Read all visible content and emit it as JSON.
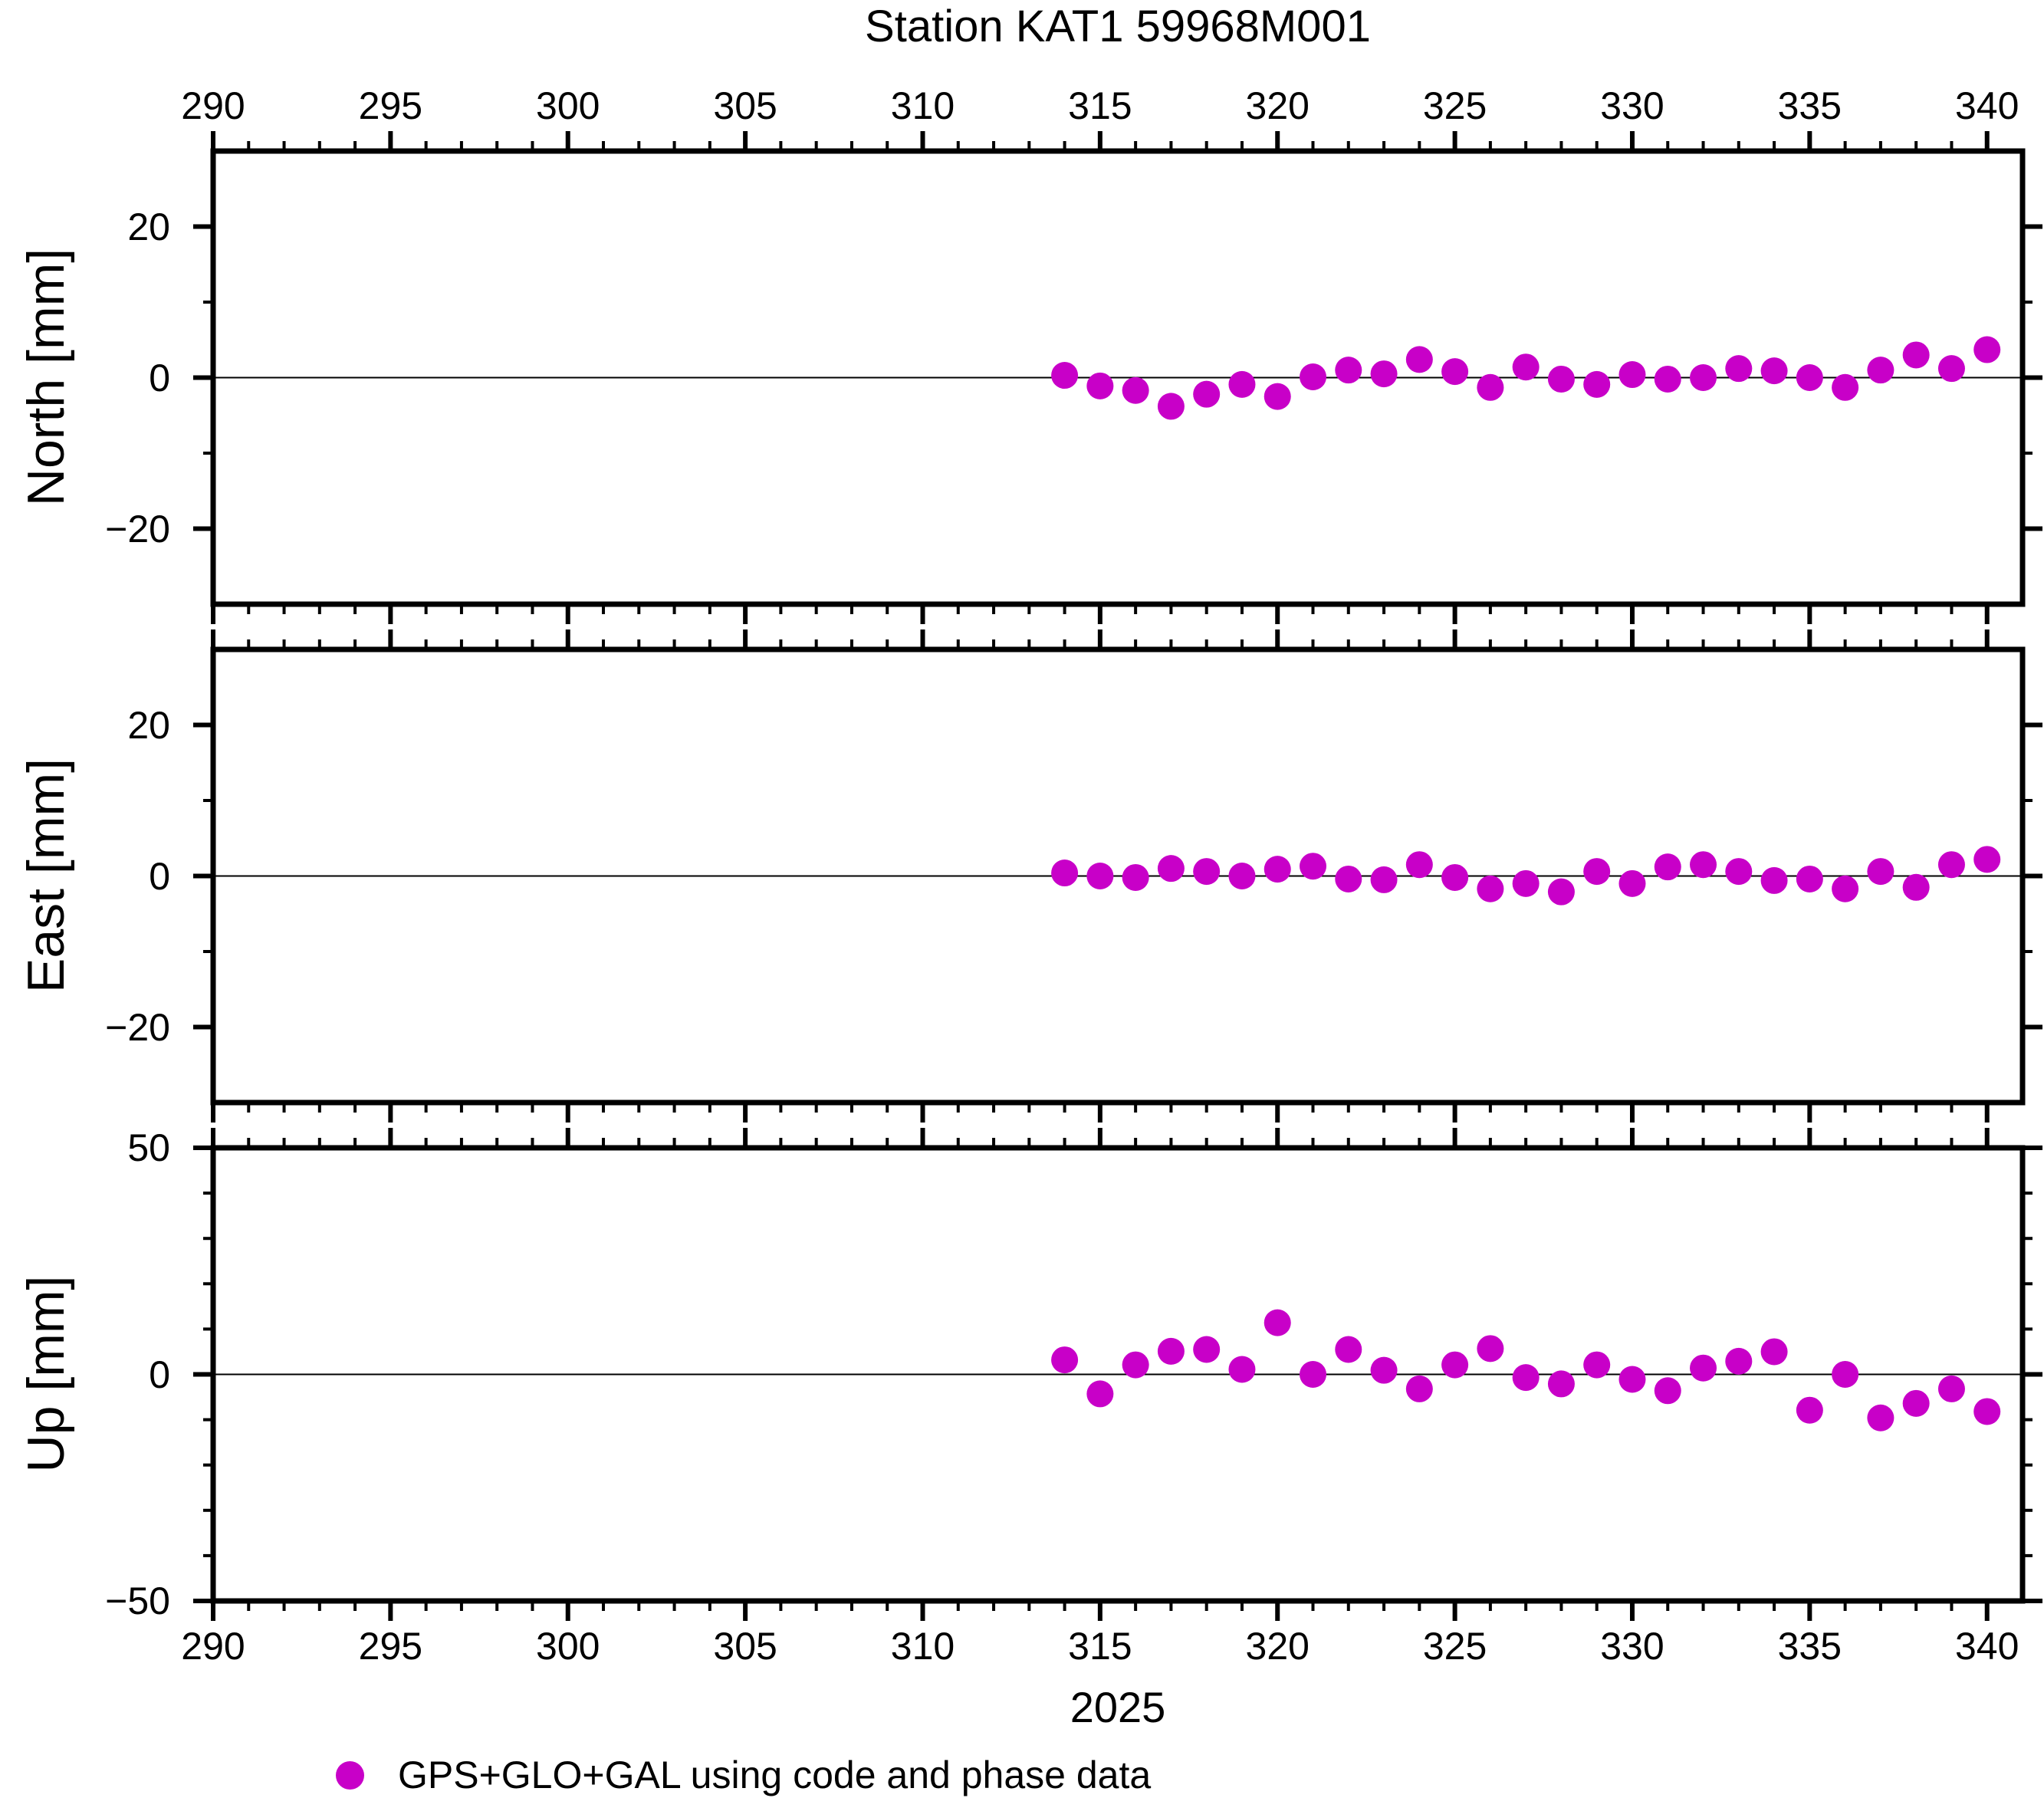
{
  "title": "Station KAT1 59968M001",
  "year_label": "2025",
  "legend": {
    "marker_color": "#C800C8",
    "label": "GPS+GLO+GAL using code and phase data"
  },
  "frame_color": "#000000",
  "axes": {
    "x": {
      "min": 290,
      "max": 341,
      "major_step": 5,
      "minor_step": 1,
      "labels": [
        {
          "v": 290,
          "label": "290"
        },
        {
          "v": 295,
          "label": "295"
        },
        {
          "v": 300,
          "label": "300"
        },
        {
          "v": 305,
          "label": "305"
        },
        {
          "v": 310,
          "label": "310"
        },
        {
          "v": 315,
          "label": "315"
        },
        {
          "v": 320,
          "label": "320"
        },
        {
          "v": 325,
          "label": "325"
        },
        {
          "v": 330,
          "label": "330"
        },
        {
          "v": 335,
          "label": "335"
        },
        {
          "v": 340,
          "label": "340"
        }
      ]
    }
  },
  "chart_data": [
    {
      "type": "scatter",
      "name": "North [mm]",
      "marker_color": "#C800C8",
      "ylim": [
        -30,
        30
      ],
      "grid_y": 0,
      "yticks": [
        {
          "v": 20,
          "label": "20"
        },
        {
          "v": 0,
          "label": "0"
        },
        {
          "v": -20,
          "label": "−20"
        }
      ],
      "y_minor": [
        -10,
        10
      ],
      "x": [
        314,
        315,
        316,
        317,
        318,
        319,
        320,
        321,
        322,
        323,
        324,
        325,
        326,
        327,
        328,
        329,
        330,
        331,
        332,
        333,
        334,
        335,
        336,
        337,
        338,
        339,
        340
      ],
      "y": [
        0.3,
        -1.1,
        -1.7,
        -3.8,
        -2.2,
        -0.9,
        -2.5,
        0.1,
        1.0,
        0.5,
        2.4,
        0.8,
        -1.3,
        1.4,
        -0.2,
        -0.9,
        0.4,
        -0.2,
        0.0,
        1.2,
        0.9,
        0.0,
        -1.3,
        1.0,
        3.0,
        1.2,
        3.7
      ]
    },
    {
      "type": "scatter",
      "name": "East [mm]",
      "marker_color": "#C800C8",
      "ylim": [
        -30,
        30
      ],
      "grid_y": 0,
      "yticks": [
        {
          "v": 20,
          "label": "20"
        },
        {
          "v": 0,
          "label": "0"
        },
        {
          "v": -20,
          "label": "−20"
        }
      ],
      "y_minor": [
        -10,
        10
      ],
      "x": [
        314,
        315,
        316,
        317,
        318,
        319,
        320,
        321,
        322,
        323,
        324,
        325,
        326,
        327,
        328,
        329,
        330,
        331,
        332,
        333,
        334,
        335,
        336,
        337,
        338,
        339,
        340
      ],
      "y": [
        0.4,
        0.0,
        -0.2,
        1.0,
        0.6,
        0.0,
        0.9,
        1.3,
        -0.4,
        -0.5,
        1.5,
        -0.2,
        -1.7,
        -1.0,
        -2.1,
        0.6,
        -1.0,
        1.2,
        1.5,
        0.6,
        -0.6,
        -0.4,
        -1.7,
        0.6,
        -1.5,
        1.5,
        2.2
      ]
    },
    {
      "type": "scatter",
      "name": "Up [mm]",
      "marker_color": "#C800C8",
      "ylim": [
        -50,
        50
      ],
      "grid_y": 0,
      "yticks": [
        {
          "v": 50,
          "label": "50"
        },
        {
          "v": 0,
          "label": "0"
        },
        {
          "v": -50,
          "label": "−50"
        }
      ],
      "y_minor": [
        -40,
        -30,
        -20,
        -10,
        10,
        20,
        30,
        40
      ],
      "x": [
        314,
        315,
        316,
        317,
        318,
        319,
        320,
        321,
        322,
        323,
        324,
        325,
        326,
        327,
        328,
        329,
        330,
        331,
        332,
        333,
        334,
        335,
        336,
        337,
        338,
        339,
        340
      ],
      "y": [
        3.2,
        -4.3,
        2.1,
        5.1,
        5.5,
        1.1,
        11.4,
        0.0,
        5.5,
        0.9,
        -3.2,
        2.1,
        5.7,
        -0.7,
        -2.1,
        2.1,
        -1.1,
        -3.6,
        1.4,
        2.9,
        5.0,
        -7.9,
        0.0,
        -9.6,
        -6.4,
        -3.2,
        -8.2
      ]
    }
  ]
}
